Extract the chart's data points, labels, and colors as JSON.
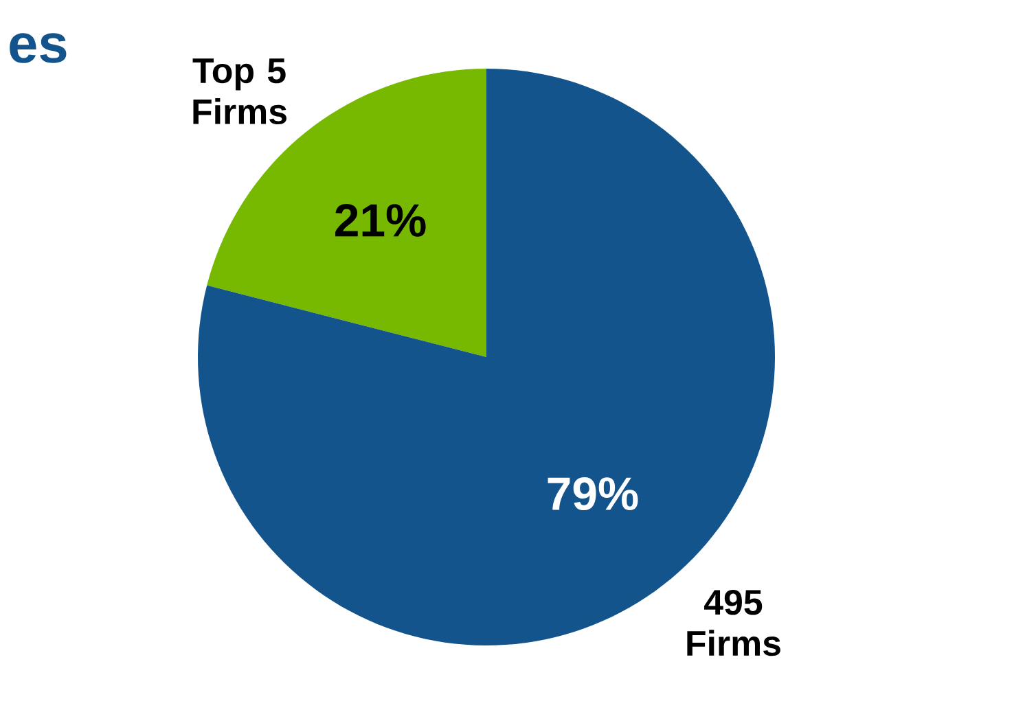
{
  "chart_data": {
    "type": "pie",
    "title": "es",
    "categories": [
      "Top 5 Firms",
      "495 Firms"
    ],
    "values": [
      21,
      79
    ],
    "colors": [
      "#76b900",
      "#12548b"
    ],
    "value_labels": [
      "21%",
      "79%"
    ]
  }
}
